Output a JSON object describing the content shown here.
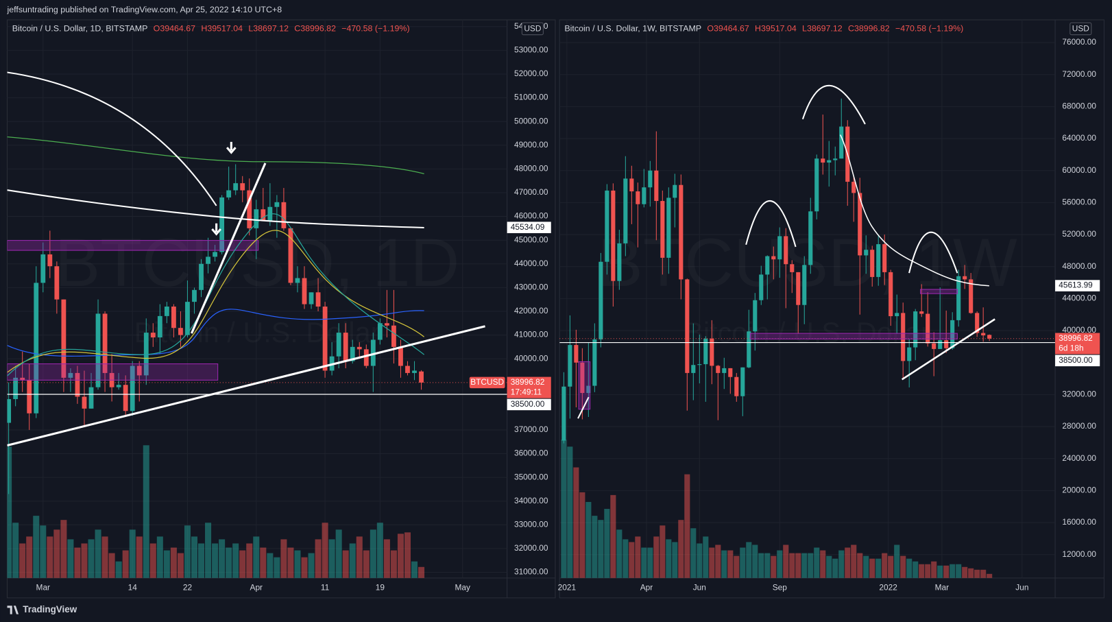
{
  "header": "jeffsuntrading published on TradingView.com, Apr 25, 2022 14:10 UTC+8",
  "footer": "TradingView",
  "chart_data": [
    {
      "type": "candlestick",
      "legend": {
        "symbol": "Bitcoin / U.S. Dollar, 1D, BITSTAMP",
        "open": "O39464.67",
        "high": "H39517.04",
        "low": "L38697.12",
        "close": "C38996.82",
        "change": "−470.58 (−1.19%)"
      },
      "currency": "USD",
      "watermark": "BTCUSD, 1D",
      "watermark_sub": "Bitcoin / U.S. Dollar",
      "up_color": "#26a69a",
      "down_color": "#ef5350",
      "xlim": [
        -0.21,
        72.47
      ],
      "xticks": [
        {
          "value": 5,
          "label": "Mar"
        },
        {
          "value": 18,
          "label": "14"
        },
        {
          "value": 26,
          "label": "22"
        },
        {
          "value": 36,
          "label": "Apr"
        },
        {
          "value": 46,
          "label": "11"
        },
        {
          "value": 54,
          "label": "19"
        },
        {
          "value": 66,
          "label": "May"
        }
      ],
      "ylim": [
        30758,
        54285
      ],
      "yticks": [
        {
          "value": 31000,
          "label": "31000.00"
        },
        {
          "value": 32000,
          "label": "32000.00"
        },
        {
          "value": 33000,
          "label": "33000.00"
        },
        {
          "value": 34000,
          "label": "34000.00"
        },
        {
          "value": 35000,
          "label": "35000.00"
        },
        {
          "value": 36000,
          "label": "36000.00"
        },
        {
          "value": 37000,
          "label": "37000.00"
        },
        {
          "value": 40000,
          "label": "40000.00"
        },
        {
          "value": 41000,
          "label": "41000.00"
        },
        {
          "value": 42000,
          "label": "42000.00"
        },
        {
          "value": 43000,
          "label": "43000.00"
        },
        {
          "value": 44000,
          "label": "44000.00"
        },
        {
          "value": 45000,
          "label": "45000.00"
        },
        {
          "value": 46000,
          "label": "46000.00"
        },
        {
          "value": 47000,
          "label": "47000.00"
        },
        {
          "value": 48000,
          "label": "48000.00"
        },
        {
          "value": 49000,
          "label": "49000.00"
        },
        {
          "value": 50000,
          "label": "50000.00"
        },
        {
          "value": 51000,
          "label": "51000.00"
        },
        {
          "value": 52000,
          "label": "52000.00"
        },
        {
          "value": 53000,
          "label": "53000.00"
        },
        {
          "value": 54000,
          "label": "54000.00"
        }
      ],
      "open": [
        37300,
        38300,
        39200,
        39100,
        37700,
        43200,
        44400,
        43900,
        42500,
        39200,
        39400,
        38400,
        37900,
        38800,
        41900,
        39400,
        38800,
        38900,
        37800,
        39700,
        39300,
        41100,
        40900,
        41800,
        42200,
        41300,
        41000,
        42400,
        42900,
        44000,
        44300,
        44500,
        46800,
        47100,
        47400,
        47100,
        45500,
        46300,
        45800,
        46400,
        46600,
        45500,
        43200,
        43400,
        42300,
        42800,
        42200,
        39500,
        40100,
        41100,
        39900,
        40500,
        40400,
        39700,
        40800,
        41500,
        41400,
        40500,
        39700,
        39400,
        39464.67
      ],
      "high": [
        39000,
        39700,
        40300,
        39800,
        43900,
        44900,
        45400,
        44100,
        42500,
        39600,
        39700,
        39500,
        39400,
        42500,
        42000,
        40200,
        39400,
        39300,
        39900,
        39900,
        41700,
        41500,
        42300,
        42400,
        42300,
        42000,
        43300,
        43000,
        44200,
        45100,
        44800,
        46900,
        48100,
        48200,
        47700,
        47600,
        46700,
        47200,
        47400,
        46900,
        47200,
        45500,
        43900,
        43900,
        42800,
        43400,
        42400,
        40700,
        41500,
        41500,
        40800,
        40700,
        40600,
        41100,
        41700,
        42900,
        42900,
        40800,
        39900,
        39900,
        39517.04
      ],
      "low": [
        34300,
        38000,
        38600,
        37000,
        37500,
        42800,
        43400,
        41900,
        38600,
        38600,
        38100,
        37200,
        37900,
        38700,
        38600,
        38200,
        38700,
        37600,
        37600,
        38200,
        38900,
        40500,
        40200,
        41500,
        40900,
        40500,
        40900,
        41900,
        42600,
        43600,
        44100,
        44400,
        46700,
        46900,
        46600,
        45200,
        44200,
        45800,
        45600,
        45100,
        45400,
        43100,
        42800,
        42100,
        42100,
        42000,
        39200,
        39300,
        39600,
        39600,
        39800,
        40000,
        39600,
        38600,
        40600,
        40900,
        39800,
        39200,
        39300,
        39100,
        38697.12
      ],
      "close": [
        38300,
        39200,
        39100,
        37700,
        43200,
        44400,
        43900,
        42500,
        39200,
        39400,
        38400,
        37900,
        38800,
        41900,
        39400,
        38800,
        38900,
        37800,
        39700,
        39300,
        41100,
        40900,
        41800,
        42200,
        41300,
        41000,
        42400,
        42900,
        44000,
        44300,
        44500,
        46800,
        47100,
        47400,
        47100,
        45500,
        46300,
        45800,
        46400,
        46600,
        45500,
        43200,
        43400,
        42300,
        42800,
        42200,
        39500,
        40100,
        41100,
        39900,
        40500,
        40400,
        39700,
        40800,
        41500,
        41400,
        40500,
        39700,
        39400,
        39500,
        38996.82
      ],
      "volume": [
        95,
        40,
        25,
        30,
        45,
        38,
        30,
        35,
        42,
        28,
        22,
        25,
        28,
        35,
        30,
        18,
        12,
        20,
        35,
        30,
        96,
        25,
        30,
        20,
        22,
        18,
        38,
        30,
        25,
        40,
        25,
        28,
        22,
        25,
        20,
        25,
        30,
        22,
        18,
        15,
        28,
        22,
        20,
        15,
        18,
        28,
        40,
        28,
        35,
        20,
        25,
        30,
        20,
        35,
        40,
        28,
        20,
        32,
        33,
        12,
        8
      ],
      "symbol_tag": "BTCUSD",
      "price_labels": [
        {
          "value": 45534.09,
          "label": "45534.09",
          "color": "#ffffff"
        },
        {
          "value": 38996.82,
          "label": "38996.82",
          "sub": "17:49:11",
          "color": "#ef5350",
          "line": "dotted"
        },
        {
          "value": 38500,
          "label": "38500.00",
          "color": "#ffffff",
          "line": "solid"
        }
      ]
    },
    {
      "type": "candlestick",
      "legend": {
        "symbol": "Bitcoin / U.S. Dollar, 1W, BITSTAMP",
        "open": "O39464.67",
        "high": "H39517.04",
        "low": "L38697.12",
        "close": "C38996.82",
        "change": "−470.58 (−1.19%)"
      },
      "currency": "USD",
      "watermark": "BTCUSD, 1W",
      "watermark_sub": "Bitcoin / U.S. Dollar",
      "up_color": "#26a69a",
      "down_color": "#ef5350",
      "xlim": [
        -0.69,
        79.66
      ],
      "xticks": [
        {
          "value": 0.5,
          "label": "2021"
        },
        {
          "value": 13.4,
          "label": "Apr"
        },
        {
          "value": 22,
          "label": "Jun"
        },
        {
          "value": 35,
          "label": "Sep"
        },
        {
          "value": 52.6,
          "label": "2022"
        },
        {
          "value": 61.3,
          "label": "Mar"
        },
        {
          "value": 74.3,
          "label": "Jun"
        }
      ],
      "ylim": [
        9073,
        78837
      ],
      "yticks": [
        {
          "value": 12000,
          "label": "12000.00"
        },
        {
          "value": 16000,
          "label": "16000.00"
        },
        {
          "value": 20000,
          "label": "20000.00"
        },
        {
          "value": 24000,
          "label": "24000.00"
        },
        {
          "value": 28000,
          "label": "28000.00"
        },
        {
          "value": 32000,
          "label": "32000.00"
        },
        {
          "value": 40000,
          "label": "40000.00"
        },
        {
          "value": 44000,
          "label": "44000.00"
        },
        {
          "value": 48000,
          "label": "48000.00"
        },
        {
          "value": 52000,
          "label": "52000.00"
        },
        {
          "value": 56000,
          "label": "56000.00"
        },
        {
          "value": 60000,
          "label": "60000.00"
        },
        {
          "value": 64000,
          "label": "64000.00"
        },
        {
          "value": 68000,
          "label": "68000.00"
        },
        {
          "value": 72000,
          "label": "72000.00"
        },
        {
          "value": 76000,
          "label": "76000.00"
        }
      ],
      "open": [
        26250,
        33000,
        38200,
        36000,
        32200,
        33100,
        38900,
        48600,
        57500,
        46200,
        50900,
        59000,
        57400,
        55800,
        57900,
        60000,
        56200,
        49100,
        56600,
        58200,
        46400,
        34700,
        35700,
        35800,
        39000,
        35600,
        34700,
        35300,
        34200,
        31800,
        35400,
        39900,
        43800,
        47000,
        49300,
        48900,
        51800,
        48300,
        47300,
        43200,
        48200,
        54900,
        61500,
        61000,
        61300,
        61500,
        65500,
        58600,
        57200,
        49400,
        50100,
        46700,
        50800,
        47300,
        41800,
        42200,
        36200,
        37900,
        42400,
        42100,
        38400,
        37700,
        38800,
        37800,
        41300,
        46800,
        46400,
        42200,
        39700,
        39464.67
      ],
      "high": [
        34800,
        41900,
        40100,
        37800,
        38500,
        40900,
        49700,
        58300,
        58400,
        52600,
        61800,
        60600,
        58500,
        60200,
        61200,
        64900,
        57500,
        57900,
        59600,
        59500,
        46500,
        40900,
        39500,
        39300,
        41300,
        35700,
        36600,
        35300,
        34700,
        35400,
        42600,
        44700,
        48100,
        49400,
        50500,
        52900,
        52800,
        48800,
        47300,
        49300,
        56600,
        62000,
        67000,
        63700,
        63000,
        69000,
        66300,
        59300,
        59100,
        51900,
        50600,
        52000,
        52000,
        47600,
        44500,
        43500,
        38900,
        42700,
        45800,
        44800,
        39800,
        45400,
        42500,
        42300,
        47600,
        48200,
        47200,
        42400,
        42900,
        39517.04
      ],
      "low": [
        25900,
        29000,
        30400,
        28900,
        29200,
        32300,
        37900,
        47000,
        43000,
        45100,
        49300,
        53300,
        50400,
        55400,
        55500,
        51300,
        47000,
        47100,
        52900,
        43900,
        30000,
        31300,
        33400,
        31100,
        33300,
        28800,
        32700,
        32100,
        31100,
        29300,
        35300,
        37500,
        43200,
        43900,
        46400,
        46600,
        42800,
        44700,
        39600,
        40800,
        47100,
        53900,
        59500,
        58000,
        59400,
        61500,
        55600,
        53600,
        42000,
        47100,
        45500,
        45600,
        45700,
        40600,
        39600,
        34000,
        32900,
        36300,
        41700,
        38000,
        34300,
        37700,
        37200,
        37600,
        40500,
        45200,
        42100,
        39200,
        38600,
        38697.12
      ],
      "close": [
        33000,
        38200,
        36000,
        32200,
        33100,
        38900,
        48600,
        57500,
        46200,
        50900,
        59000,
        57400,
        55800,
        57900,
        60000,
        56200,
        49100,
        56600,
        58200,
        46400,
        34700,
        35700,
        35800,
        39000,
        35600,
        34700,
        35300,
        34200,
        31800,
        35400,
        39900,
        43800,
        47000,
        49300,
        48900,
        51800,
        48300,
        47300,
        43200,
        48200,
        54900,
        61500,
        61000,
        61300,
        61500,
        65500,
        58600,
        57200,
        49400,
        50100,
        46700,
        50800,
        47300,
        41800,
        42200,
        36200,
        37900,
        42400,
        42100,
        38400,
        37700,
        38800,
        37800,
        41300,
        46800,
        46400,
        42200,
        39700,
        39400,
        38996.82
      ],
      "volume": [
        100,
        95,
        80,
        62,
        55,
        45,
        42,
        50,
        60,
        35,
        28,
        26,
        30,
        22,
        22,
        30,
        38,
        28,
        26,
        42,
        75,
        36,
        25,
        30,
        22,
        24,
        20,
        20,
        16,
        22,
        26,
        24,
        18,
        18,
        16,
        20,
        24,
        18,
        18,
        18,
        18,
        22,
        20,
        16,
        14,
        20,
        22,
        24,
        18,
        16,
        14,
        14,
        18,
        16,
        24,
        16,
        14,
        12,
        10,
        10,
        12,
        9,
        9,
        10,
        10,
        8,
        7,
        6,
        6,
        3
      ],
      "price_labels": [
        {
          "value": 45613.99,
          "label": "45613.99",
          "color": "#ffffff"
        },
        {
          "value": 38996.82,
          "label": "38996.82",
          "sub": "6d 18h",
          "color": "#ef5350",
          "line": "dotted"
        },
        {
          "value": 38500,
          "label": "38500.00",
          "color": "#ffffff",
          "line": "solid"
        }
      ]
    }
  ]
}
